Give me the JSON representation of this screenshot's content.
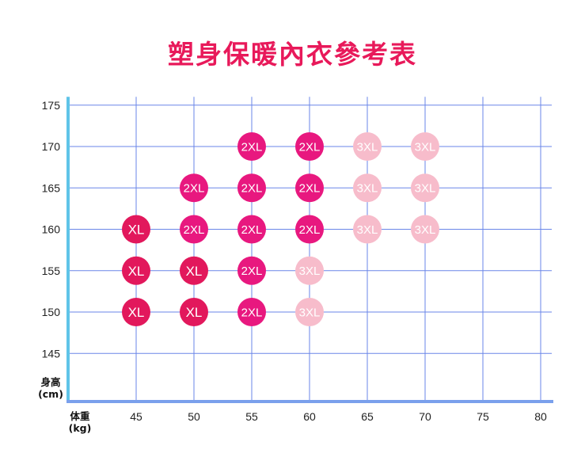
{
  "chart_data": {
    "type": "scatter",
    "title": "塑身保暖內衣參考表",
    "xlabel": [
      "体重",
      "(kg)"
    ],
    "ylabel": [
      "身高",
      "(cm)"
    ],
    "x_ticks": [
      45,
      50,
      55,
      60,
      65,
      70,
      75,
      80
    ],
    "y_ticks": [
      145,
      150,
      155,
      160,
      165,
      170,
      175
    ],
    "xlim": [
      40,
      80
    ],
    "ylim": [
      139,
      176
    ],
    "grid": true,
    "colors": {
      "XL": "#e2185c",
      "2XL": "#e8187f",
      "3XL": "#f7bccb",
      "grid": "#6a86e8",
      "axis_left": "#5fc4e8",
      "axis_bottom": "#7aa0ec",
      "title": "#e8195a"
    },
    "points": [
      {
        "x": 55,
        "y": 170,
        "size": "2XL"
      },
      {
        "x": 60,
        "y": 170,
        "size": "2XL"
      },
      {
        "x": 65,
        "y": 170,
        "size": "3XL"
      },
      {
        "x": 70,
        "y": 170,
        "size": "3XL"
      },
      {
        "x": 50,
        "y": 165,
        "size": "2XL"
      },
      {
        "x": 55,
        "y": 165,
        "size": "2XL"
      },
      {
        "x": 60,
        "y": 165,
        "size": "2XL"
      },
      {
        "x": 65,
        "y": 165,
        "size": "3XL"
      },
      {
        "x": 70,
        "y": 165,
        "size": "3XL"
      },
      {
        "x": 45,
        "y": 160,
        "size": "XL"
      },
      {
        "x": 50,
        "y": 160,
        "size": "2XL"
      },
      {
        "x": 55,
        "y": 160,
        "size": "2XL"
      },
      {
        "x": 60,
        "y": 160,
        "size": "2XL"
      },
      {
        "x": 65,
        "y": 160,
        "size": "3XL"
      },
      {
        "x": 70,
        "y": 160,
        "size": "3XL"
      },
      {
        "x": 45,
        "y": 155,
        "size": "XL"
      },
      {
        "x": 50,
        "y": 155,
        "size": "XL"
      },
      {
        "x": 55,
        "y": 155,
        "size": "2XL"
      },
      {
        "x": 60,
        "y": 155,
        "size": "3XL"
      },
      {
        "x": 45,
        "y": 150,
        "size": "XL"
      },
      {
        "x": 50,
        "y": 150,
        "size": "XL"
      },
      {
        "x": 55,
        "y": 150,
        "size": "2XL"
      },
      {
        "x": 60,
        "y": 150,
        "size": "3XL"
      }
    ]
  }
}
